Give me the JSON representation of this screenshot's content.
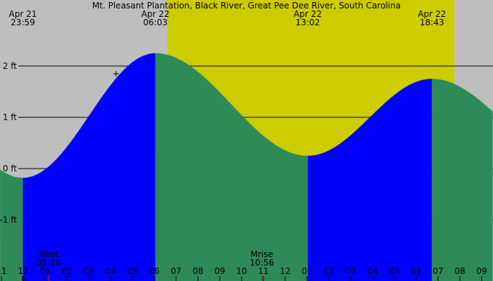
{
  "chart_data": {
    "type": "area",
    "title": "Mt. Pleasant Plantation, Black River, Great Pee Dee River, South Carolina",
    "y_unit": "ft",
    "y_ticks": [
      {
        "value": 2,
        "label": "2 ft"
      },
      {
        "value": 1,
        "label": "1 ft"
      },
      {
        "value": 0,
        "label": "0 ft"
      },
      {
        "value": -1,
        "label": "-1 ft"
      }
    ],
    "x_range_hours": [
      -1.06,
      21.5
    ],
    "x_tick_labels": [
      "11",
      "12",
      "01",
      "02",
      "03",
      "04",
      "05",
      "06",
      "07",
      "08",
      "09",
      "10",
      "11",
      "12",
      "01",
      "02",
      "03",
      "04",
      "05",
      "06",
      "07",
      "08",
      "09"
    ],
    "tide_extremes": [
      {
        "date": "Apr 21",
        "time": "23:59",
        "hours": -0.017,
        "height_ft": -0.18,
        "type": "low"
      },
      {
        "date": "Apr 22",
        "time": "06:03",
        "hours": 6.05,
        "height_ft": 2.25,
        "type": "high"
      },
      {
        "date": "Apr 22",
        "time": "13:02",
        "hours": 13.03,
        "height_ft": 0.25,
        "type": "low"
      },
      {
        "date": "Apr 22",
        "time": "18:43",
        "hours": 18.72,
        "height_ft": 1.75,
        "type": "high"
      }
    ],
    "daylight_hours": [
      6.6,
      19.75
    ],
    "moon_events": [
      {
        "label": "Mset",
        "time": "01:10",
        "hours": 1.17
      },
      {
        "label": "Mrise",
        "time": "10:56",
        "hours": 10.93
      }
    ],
    "current_marker": {
      "hours": 4.25,
      "height_ft": 1.85
    },
    "colors": {
      "night": "#bebebe",
      "day": "#cccc00",
      "rising": "#0000ff",
      "falling": "#2e8b57",
      "moon_tick": "#ff0000"
    }
  }
}
